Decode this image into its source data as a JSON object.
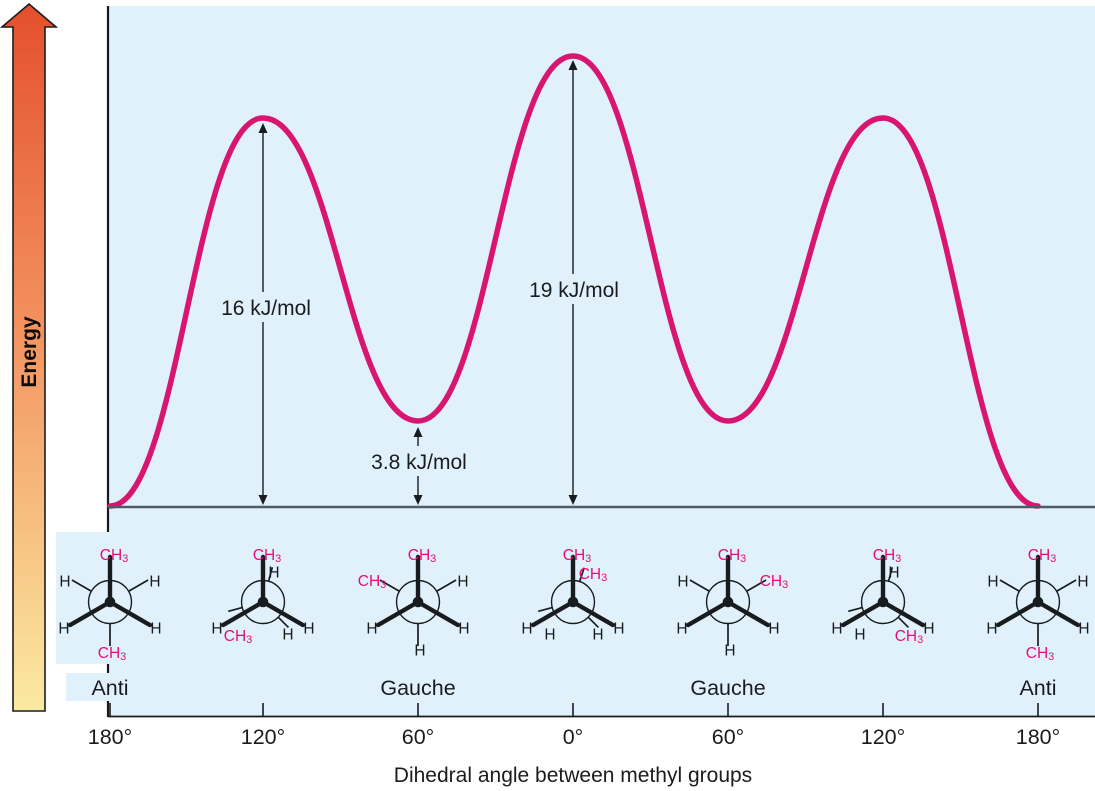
{
  "figure": {
    "xlabel": "Dihedral angle between methyl groups",
    "ylabel": "Energy"
  },
  "chart_data": {
    "type": "line",
    "title": "",
    "xlabel": "Dihedral angle between methyl groups",
    "ylabel": "Energy",
    "x_tick_labels": [
      "180°",
      "120°",
      "60°",
      "0°",
      "60°",
      "120°",
      "180°"
    ],
    "x_dihedral_deg": [
      180,
      120,
      60,
      0,
      60,
      120,
      180
    ],
    "y_relative_energy_kJ_per_mol": [
      0,
      16,
      3.8,
      19,
      3.8,
      16,
      0
    ],
    "annotations": [
      {
        "text": "16 kJ/mol",
        "at": "left 120° eclipsed peak"
      },
      {
        "text": "19 kJ/mol",
        "at": "central 0° eclipsed peak"
      },
      {
        "text": "3.8 kJ/mol",
        "at": "left 60° gauche minimum"
      }
    ],
    "legend": [],
    "grid": false,
    "curve_color": "#d81671",
    "background_color": "#e1f1fb"
  },
  "conformers": [
    {
      "label": "Anti",
      "tick": 0
    },
    {
      "label": "Gauche",
      "tick": 2
    },
    {
      "label": "Gauche",
      "tick": 4
    },
    {
      "label": "Anti",
      "tick": 6
    }
  ],
  "newman_projections": [
    {
      "conformation": "anti",
      "dihedral": "180°",
      "mask": true,
      "front": [
        {
          "angle": -90,
          "label": "CH3"
        },
        {
          "angle": 150,
          "label": "H"
        },
        {
          "angle": 30,
          "label": "H"
        }
      ],
      "back": [
        {
          "angle": -150,
          "label": "H"
        },
        {
          "angle": -30,
          "label": "H"
        },
        {
          "angle": 90,
          "label": "CH3"
        }
      ]
    },
    {
      "conformation": "eclipsed",
      "dihedral": "120°",
      "mask": false,
      "front": [
        {
          "angle": -90,
          "label": "CH3"
        },
        {
          "angle": 150,
          "label": "H"
        },
        {
          "angle": 30,
          "label": "H"
        }
      ],
      "back": [
        {
          "angle": -75,
          "label": "H"
        },
        {
          "angle": 165,
          "label": "CH3"
        },
        {
          "angle": 45,
          "label": "H"
        }
      ]
    },
    {
      "conformation": "gauche",
      "dihedral": "60°",
      "mask": false,
      "front": [
        {
          "angle": -90,
          "label": "CH3"
        },
        {
          "angle": 150,
          "label": "H"
        },
        {
          "angle": 30,
          "label": "H"
        }
      ],
      "back": [
        {
          "angle": -150,
          "label": "CH3"
        },
        {
          "angle": -30,
          "label": "H"
        },
        {
          "angle": 90,
          "label": "H"
        }
      ]
    },
    {
      "conformation": "eclipsed",
      "dihedral": "0°",
      "mask": false,
      "front": [
        {
          "angle": -90,
          "label": "CH3"
        },
        {
          "angle": 150,
          "label": "H"
        },
        {
          "angle": 30,
          "label": "H"
        }
      ],
      "back": [
        {
          "angle": -72,
          "label": "CH3"
        },
        {
          "angle": 165,
          "label": "H"
        },
        {
          "angle": 45,
          "label": "H"
        }
      ]
    },
    {
      "conformation": "gauche",
      "dihedral": "60°",
      "mask": false,
      "front": [
        {
          "angle": -90,
          "label": "CH3"
        },
        {
          "angle": 150,
          "label": "H"
        },
        {
          "angle": 30,
          "label": "H"
        }
      ],
      "back": [
        {
          "angle": -150,
          "label": "H"
        },
        {
          "angle": -30,
          "label": "CH3"
        },
        {
          "angle": 90,
          "label": "H"
        }
      ]
    },
    {
      "conformation": "eclipsed",
      "dihedral": "120°",
      "mask": false,
      "front": [
        {
          "angle": -90,
          "label": "CH3"
        },
        {
          "angle": 150,
          "label": "H"
        },
        {
          "angle": 30,
          "label": "H"
        }
      ],
      "back": [
        {
          "angle": -75,
          "label": "H"
        },
        {
          "angle": 165,
          "label": "H"
        },
        {
          "angle": 45,
          "label": "CH3"
        }
      ]
    },
    {
      "conformation": "anti",
      "dihedral": "180°",
      "mask": false,
      "front": [
        {
          "angle": -90,
          "label": "CH3"
        },
        {
          "angle": 150,
          "label": "H"
        },
        {
          "angle": 30,
          "label": "H"
        }
      ],
      "back": [
        {
          "angle": -150,
          "label": "H"
        },
        {
          "angle": -30,
          "label": "H"
        },
        {
          "angle": 90,
          "label": "CH3"
        }
      ]
    }
  ],
  "colors": {
    "plot_bg": "#e1f1fb",
    "curve": "#d81671",
    "methyl_pink": "#e50d7a",
    "ink": "#191c1f",
    "baseline": "#4d5b66",
    "energy_arrow_top": "#e44f2c",
    "energy_arrow_mid": "#f2915e",
    "energy_arrow_bottom": "#fbeaa2"
  }
}
